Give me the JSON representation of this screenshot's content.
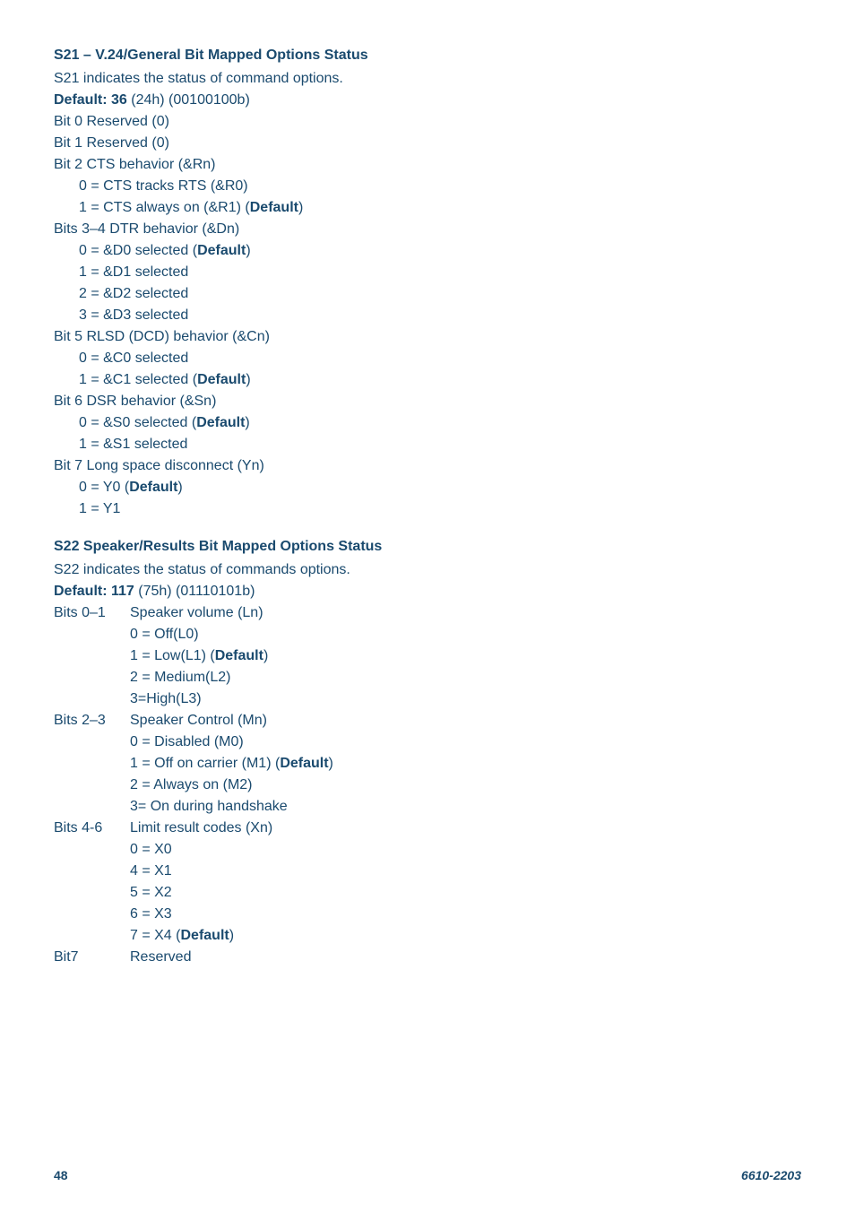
{
  "text_color": "#1a4a6e",
  "background_color": "#ffffff",
  "font_family": "Arial, Helvetica, sans-serif",
  "s21": {
    "heading": "S21 – V.24/General Bit Mapped Options Status",
    "description": "S21 indicates the status of command options.",
    "default_label": "Default: 36",
    "default_rest": " (24h) (00100100b)",
    "lines": [
      "Bit 0 Reserved (0)",
      "Bit 1 Reserved (0)",
      "Bit 2 CTS behavior (&Rn)"
    ],
    "bit2_subs": [
      {
        "pre": "0 = CTS tracks RTS (&R0)",
        "bold": ""
      },
      {
        "pre": "1 = CTS always on (&R1) (",
        "bold": "Default",
        "post": ")"
      }
    ],
    "bits34_heading": "Bits 3–4 DTR behavior (&Dn)",
    "bits34_subs": [
      {
        "pre": "0 = &D0 selected (",
        "bold": "Default",
        "post": ")"
      },
      {
        "pre": "1 = &D1 selected",
        "bold": ""
      },
      {
        "pre": "2 = &D2 selected",
        "bold": ""
      },
      {
        "pre": "3 = &D3 selected",
        "bold": ""
      }
    ],
    "bit5_heading": "Bit 5 RLSD (DCD) behavior (&Cn)",
    "bit5_subs": [
      {
        "pre": "0 = &C0 selected",
        "bold": ""
      },
      {
        "pre": "1 = &C1 selected (",
        "bold": "Default",
        "post": ")"
      }
    ],
    "bit6_heading": "Bit 6 DSR behavior (&Sn)",
    "bit6_subs": [
      {
        "pre": "0 = &S0 selected (",
        "bold": "Default",
        "post": ")"
      },
      {
        "pre": "1 = &S1 selected",
        "bold": ""
      }
    ],
    "bit7_heading": "Bit 7 Long space disconnect (Yn)",
    "bit7_subs": [
      {
        "pre": "0 = Y0 (",
        "bold": "Default",
        "post": ")"
      },
      {
        "pre": "1 = Y1",
        "bold": ""
      }
    ]
  },
  "s22": {
    "heading": "S22 Speaker/Results Bit Mapped Options Status",
    "description": "S22 indicates the status of commands options.",
    "default_label": "Default: 117",
    "default_rest": " (75h) (01110101b)",
    "bits01_label": "Bits 0–1",
    "bits01_desc": "Speaker volume (Ln)",
    "bits01_subs": [
      {
        "pre": "0 = Off(L0)",
        "bold": ""
      },
      {
        "pre": "1 = Low(L1) (",
        "bold": "Default",
        "post": ")"
      },
      {
        "pre": "2 = Medium(L2)",
        "bold": ""
      },
      {
        "pre": "3=High(L3)",
        "bold": ""
      }
    ],
    "bits23_label": "Bits 2–3",
    "bits23_desc": "Speaker Control (Mn)",
    "bits23_subs": [
      {
        "pre": "0 = Disabled (M0)",
        "bold": ""
      },
      {
        "pre": "1 = Off on carrier (M1) (",
        "bold": "Default",
        "post": ")"
      },
      {
        "pre": "2 = Always on (M2)",
        "bold": ""
      },
      {
        "pre": "3= On during handshake",
        "bold": ""
      }
    ],
    "bits46_label": "Bits 4-6",
    "bits46_desc": "Limit result codes (Xn)",
    "bits46_subs": [
      {
        "pre": "0 = X0",
        "bold": ""
      },
      {
        "pre": "4 = X1",
        "bold": ""
      },
      {
        "pre": "5 = X2",
        "bold": ""
      },
      {
        "pre": "6 = X3",
        "bold": ""
      },
      {
        "pre": "7 = X4 (",
        "bold": "Default",
        "post": ")"
      }
    ],
    "bit7_label": "Bit7",
    "bit7_desc": " Reserved"
  },
  "footer": {
    "page": "48",
    "doc": "6610-2203"
  }
}
